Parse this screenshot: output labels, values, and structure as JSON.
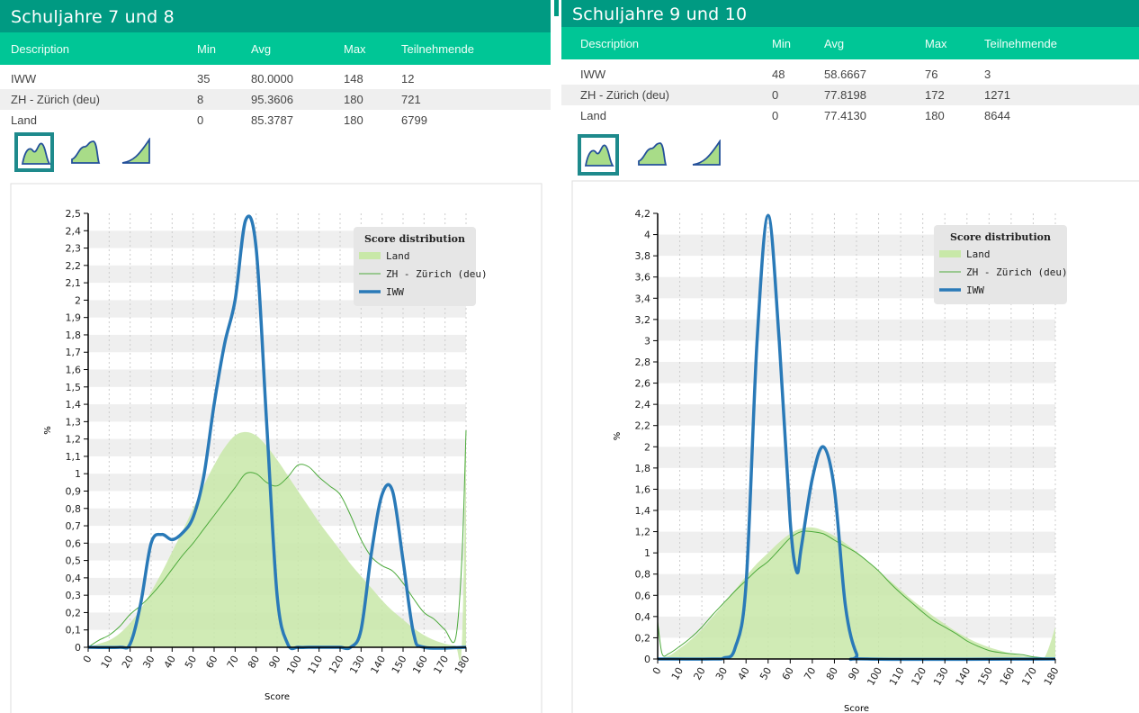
{
  "colors": {
    "title_bg": "#009a82",
    "header_bg": "#00c696",
    "land_fill": "#c8e8a8",
    "zh_line": "#4daa3c",
    "iww_line": "#2a7ab8",
    "band": "#efefef",
    "selected_tab": "#1e8a8c"
  },
  "columns": {
    "description": "Description",
    "min": "Min",
    "avg": "Avg",
    "max": "Max",
    "teilnehmende": "Teilnehmende"
  },
  "view_icons": [
    "distribution-area-icon",
    "distribution-curve-icon",
    "cumulative-curve-icon"
  ],
  "panels": [
    {
      "title": "Schuljahre 7 und 8",
      "rows": [
        {
          "description": "IWW",
          "min": "35",
          "avg": "80.0000",
          "max": "148",
          "teilnehmende": "12"
        },
        {
          "description": "ZH - Zürich (deu)",
          "min": "8",
          "avg": "95.3606",
          "max": "180",
          "teilnehmende": "721"
        },
        {
          "description": "Land",
          "min": "0",
          "avg": "85.3787",
          "max": "180",
          "teilnehmende": "6799"
        }
      ]
    },
    {
      "title": "Schuljahre 9 und 10",
      "rows": [
        {
          "description": "IWW",
          "min": "48",
          "avg": "58.6667",
          "max": "76",
          "teilnehmende": "3"
        },
        {
          "description": "ZH - Zürich (deu)",
          "min": "0",
          "avg": "77.8198",
          "max": "172",
          "teilnehmende": "1271"
        },
        {
          "description": "Land",
          "min": "0",
          "avg": "77.4130",
          "max": "180",
          "teilnehmende": "8644"
        }
      ]
    }
  ],
  "chart_data": [
    {
      "type": "area",
      "xlabel": "Score",
      "ylabel": "%",
      "xlim": [
        0,
        180
      ],
      "ylim": [
        0,
        2.5
      ],
      "x_ticks": [
        0,
        10,
        20,
        30,
        40,
        50,
        60,
        70,
        80,
        90,
        100,
        110,
        120,
        130,
        140,
        150,
        160,
        170,
        180
      ],
      "y_ticks": [
        "0",
        "0,1",
        "0,2",
        "0,3",
        "0,4",
        "0,5",
        "0,6",
        "0,7",
        "0,8",
        "0,9",
        "1",
        "1,1",
        "1,2",
        "1,3",
        "1,4",
        "1,5",
        "1,6",
        "1,7",
        "1,8",
        "1,9",
        "2",
        "2,1",
        "2,2",
        "2,3",
        "2,4",
        "2,5"
      ],
      "y_tick_values": [
        0,
        0.1,
        0.2,
        0.3,
        0.4,
        0.5,
        0.6,
        0.7,
        0.8,
        0.9,
        1,
        1.1,
        1.2,
        1.3,
        1.4,
        1.5,
        1.6,
        1.7,
        1.8,
        1.9,
        2,
        2.1,
        2.2,
        2.3,
        2.4,
        2.5
      ],
      "grid": true,
      "legend_title": "Score distribution",
      "legend_position": "top-right",
      "series": [
        {
          "name": "Land",
          "style": "area",
          "x": [
            0,
            5,
            10,
            15,
            20,
            25,
            30,
            35,
            40,
            45,
            50,
            55,
            60,
            65,
            70,
            75,
            80,
            85,
            90,
            95,
            100,
            105,
            110,
            115,
            120,
            125,
            130,
            135,
            140,
            145,
            150,
            155,
            160,
            165,
            170,
            175,
            178,
            180
          ],
          "y": [
            0,
            0.02,
            0.04,
            0.08,
            0.14,
            0.22,
            0.32,
            0.43,
            0.55,
            0.67,
            0.8,
            0.93,
            1.05,
            1.15,
            1.22,
            1.24,
            1.22,
            1.16,
            1.08,
            0.99,
            0.9,
            0.81,
            0.72,
            0.64,
            0.56,
            0.48,
            0.41,
            0.34,
            0.27,
            0.21,
            0.16,
            0.11,
            0.07,
            0.04,
            0.02,
            0.01,
            0.01,
            1.25
          ]
        },
        {
          "name": "ZH - Zürich (deu)",
          "style": "line",
          "x": [
            0,
            5,
            10,
            15,
            20,
            25,
            30,
            35,
            40,
            45,
            50,
            55,
            60,
            65,
            70,
            75,
            80,
            85,
            90,
            95,
            100,
            105,
            110,
            115,
            120,
            125,
            130,
            135,
            140,
            145,
            150,
            155,
            160,
            165,
            170,
            175,
            178,
            180
          ],
          "y": [
            0,
            0.04,
            0.07,
            0.12,
            0.19,
            0.24,
            0.3,
            0.37,
            0.45,
            0.53,
            0.6,
            0.68,
            0.76,
            0.84,
            0.92,
            1.0,
            1.0,
            0.95,
            0.93,
            0.98,
            1.05,
            1.04,
            0.98,
            0.93,
            0.88,
            0.76,
            0.62,
            0.52,
            0.47,
            0.44,
            0.37,
            0.28,
            0.2,
            0.16,
            0.1,
            0.05,
            0.5,
            1.25
          ]
        },
        {
          "name": "IWW",
          "style": "thick-line",
          "x": [
            0,
            15,
            20,
            25,
            30,
            35,
            40,
            45,
            50,
            55,
            60,
            65,
            70,
            75,
            80,
            85,
            90,
            95,
            100,
            105,
            110,
            115,
            120,
            125,
            130,
            135,
            140,
            145,
            150,
            155,
            160,
            180
          ],
          "y": [
            0,
            0,
            0.02,
            0.25,
            0.6,
            0.65,
            0.62,
            0.66,
            0.75,
            0.98,
            1.4,
            1.75,
            2.0,
            2.46,
            2.3,
            1.3,
            0.3,
            0.02,
            0,
            0,
            0,
            0,
            0,
            0,
            0.1,
            0.55,
            0.88,
            0.9,
            0.5,
            0.08,
            0,
            0
          ]
        }
      ]
    },
    {
      "type": "area",
      "xlabel": "Score",
      "ylabel": "%",
      "xlim": [
        0,
        180
      ],
      "ylim": [
        0,
        4.2
      ],
      "x_ticks": [
        0,
        10,
        20,
        30,
        40,
        50,
        60,
        70,
        80,
        90,
        100,
        110,
        120,
        130,
        140,
        150,
        160,
        170,
        180
      ],
      "y_ticks": [
        "0",
        "0,2",
        "0,4",
        "0,6",
        "0,8",
        "1",
        "1,2",
        "1,4",
        "1,6",
        "1,8",
        "2",
        "2,2",
        "2,4",
        "2,6",
        "2,8",
        "3",
        "3,2",
        "3,4",
        "3,6",
        "3,8",
        "4",
        "4,2"
      ],
      "y_tick_values": [
        0,
        0.2,
        0.4,
        0.6,
        0.8,
        1,
        1.2,
        1.4,
        1.6,
        1.8,
        2,
        2.2,
        2.4,
        2.6,
        2.8,
        3,
        3.2,
        3.4,
        3.6,
        3.8,
        4,
        4.2
      ],
      "grid": true,
      "legend_title": "Score distribution",
      "legend_position": "top-right",
      "series": [
        {
          "name": "Land",
          "style": "area",
          "x": [
            0,
            5,
            10,
            15,
            20,
            25,
            30,
            35,
            40,
            45,
            50,
            55,
            60,
            65,
            70,
            75,
            80,
            85,
            90,
            95,
            100,
            105,
            110,
            115,
            120,
            125,
            130,
            135,
            140,
            145,
            150,
            155,
            160,
            165,
            170,
            175,
            180
          ],
          "y": [
            0,
            0.03,
            0.1,
            0.18,
            0.28,
            0.4,
            0.52,
            0.65,
            0.78,
            0.9,
            1.0,
            1.1,
            1.18,
            1.23,
            1.24,
            1.21,
            1.16,
            1.09,
            1.01,
            0.92,
            0.83,
            0.74,
            0.65,
            0.56,
            0.48,
            0.4,
            0.33,
            0.26,
            0.2,
            0.15,
            0.11,
            0.08,
            0.05,
            0.03,
            0.02,
            0.01,
            0.3
          ]
        },
        {
          "name": "ZH - Zürich (deu)",
          "style": "line",
          "x": [
            0,
            2,
            5,
            10,
            15,
            20,
            25,
            30,
            35,
            40,
            45,
            50,
            55,
            60,
            65,
            70,
            75,
            80,
            85,
            90,
            95,
            100,
            105,
            110,
            115,
            120,
            125,
            130,
            135,
            140,
            145,
            150,
            155,
            160,
            165,
            170,
            175,
            180
          ],
          "y": [
            0.35,
            0.05,
            0.05,
            0.12,
            0.2,
            0.3,
            0.42,
            0.53,
            0.64,
            0.74,
            0.84,
            0.92,
            1.03,
            1.14,
            1.2,
            1.2,
            1.18,
            1.12,
            1.06,
            1.0,
            0.92,
            0.83,
            0.72,
            0.62,
            0.53,
            0.44,
            0.36,
            0.3,
            0.24,
            0.17,
            0.12,
            0.08,
            0.06,
            0.05,
            0.04,
            0.02,
            0.01,
            0
          ]
        },
        {
          "name": "IWW",
          "style": "thick-line",
          "x": [
            0,
            25,
            30,
            35,
            40,
            45,
            50,
            55,
            60,
            63,
            65,
            70,
            75,
            80,
            85,
            90,
            95,
            180
          ],
          "y": [
            0,
            0,
            0.01,
            0.1,
            0.7,
            3.0,
            4.18,
            3.0,
            1.3,
            0.82,
            1.05,
            1.7,
            2.0,
            1.6,
            0.5,
            0.05,
            0,
            0
          ]
        }
      ]
    }
  ]
}
